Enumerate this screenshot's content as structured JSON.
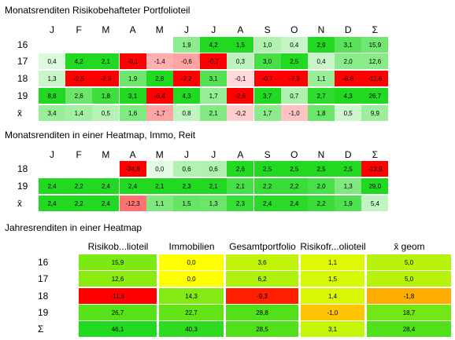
{
  "colors": {
    "red": "#ff0000",
    "green": "#21d921",
    "yellow": "#ffff00",
    "white": "#ffffff"
  },
  "section1": {
    "title": "Monatsrenditen Risikobehafteter Portfolioteil",
    "columns": [
      "J",
      "F",
      "M",
      "A",
      "M",
      "J",
      "J",
      "A",
      "S",
      "O",
      "N",
      "D",
      "Σ"
    ],
    "rows": [
      {
        "label": "16",
        "values": [
          "",
          "",
          "",
          "",
          "",
          "1,9",
          "4,2",
          "1,5",
          "1,0",
          "0,4",
          "2,9",
          "3,1",
          "15,9"
        ]
      },
      {
        "label": "17",
        "values": [
          "0,4",
          "4,2",
          "2,1",
          "-0,1",
          "-1,4",
          "-0,6",
          "-0,7",
          "0,3",
          "3,0",
          "2,5",
          "0,4",
          "2,0",
          "12,6"
        ]
      },
      {
        "label": "18",
        "values": [
          "1,3",
          "-2,5",
          "-2,3",
          "1,9",
          "2,8",
          "-2,2",
          "3,1",
          "-0,1",
          "-0,7",
          "-7,3",
          "1,1",
          "-6,8",
          "-11,6"
        ]
      },
      {
        "label": "19",
        "values": [
          "8,8",
          "2,6",
          "1,8",
          "3,1",
          "-6,4",
          "4,3",
          "1,7",
          "-2,6",
          "3,7",
          "0,7",
          "2,7",
          "4,3",
          "26,7"
        ]
      },
      {
        "label": "x̄",
        "values": [
          "3,4",
          "1,4",
          "0,5",
          "1,6",
          "-1,7",
          "0,8",
          "2,1",
          "-0,2",
          "1,7",
          "-1,0",
          "1,8",
          "0,5",
          "9,9"
        ]
      }
    ]
  },
  "section2": {
    "title": "Monatsrenditen in einer Heatmap, Immo, Reit",
    "columns": [
      "J",
      "F",
      "M",
      "A",
      "M",
      "J",
      "J",
      "A",
      "S",
      "O",
      "N",
      "D",
      "Σ"
    ],
    "rows": [
      {
        "label": "18",
        "values": [
          "",
          "",
          "",
          "-24,9",
          "0,0",
          "0,6",
          "0,6",
          "2,6",
          "2,5",
          "2,5",
          "2,5",
          "2,5",
          "-13,9"
        ]
      },
      {
        "label": "19",
        "values": [
          "2,4",
          "2,2",
          "2,4",
          "2,4",
          "2,1",
          "2,3",
          "2,1",
          "2,1",
          "2,2",
          "2,2",
          "2,0",
          "1,3",
          "29,0"
        ]
      },
      {
        "label": "x̄",
        "values": [
          "2,4",
          "2,2",
          "2,4",
          "-12,3",
          "1,1",
          "1,5",
          "1,3",
          "2,3",
          "2,4",
          "2,4",
          "2,2",
          "1,9",
          "5,4"
        ]
      }
    ]
  },
  "section3": {
    "title": "Jahresrenditen in einer Heatmap",
    "columns": [
      "Risikob...lioteil",
      "Immobilien",
      "Gesamtportfolio",
      "Risikofr...olioteil",
      "x̄ geom"
    ],
    "rows": [
      {
        "label": "16",
        "values": [
          "15,9",
          "0,0",
          "3,6",
          "1,1",
          "5,0"
        ]
      },
      {
        "label": "17",
        "values": [
          "12,6",
          "0,0",
          "6,2",
          "1,5",
          "5,0"
        ]
      },
      {
        "label": "18",
        "values": [
          "-11,6",
          "14,3",
          "-9,3",
          "1,4",
          "-1,8"
        ]
      },
      {
        "label": "19",
        "values": [
          "26,7",
          "22,7",
          "28,8",
          "-1,0",
          "18,7"
        ]
      },
      {
        "label": "Σ",
        "values": [
          "46,1",
          "40,3",
          "28,5",
          "3,1",
          "28,4"
        ]
      }
    ]
  }
}
